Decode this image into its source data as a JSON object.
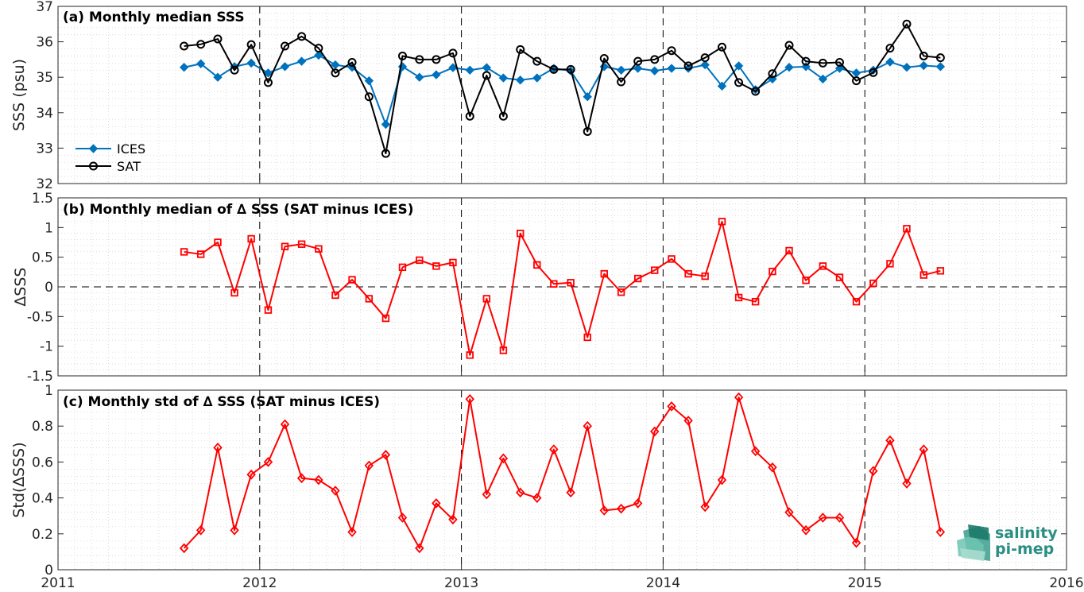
{
  "colors": {
    "ices": "#0072BD",
    "sat": "#000000",
    "delta": "#FF0000",
    "logo": "#2a8f83"
  },
  "logo": {
    "line1": "salinity",
    "line2": "pi-mep"
  },
  "x_axis": {
    "xlim": [
      2011,
      2016
    ],
    "tick_labels": [
      "2011",
      "2012",
      "2013",
      "2014",
      "2015",
      "2016"
    ]
  },
  "chart_data": [
    {
      "type": "line",
      "title": "(a) Monthly median SSS",
      "xlabel": "",
      "ylabel": "SSS (psu)",
      "ylim": [
        32,
        37
      ],
      "y_ticks": [
        "32",
        "33",
        "34",
        "35",
        "36",
        "37"
      ],
      "grid": "on",
      "legend_position": "bottom-left",
      "x": [
        2011.625,
        2011.708,
        2011.792,
        2011.875,
        2011.958,
        2012.042,
        2012.125,
        2012.208,
        2012.292,
        2012.375,
        2012.458,
        2012.542,
        2012.625,
        2012.708,
        2012.792,
        2012.875,
        2012.958,
        2013.042,
        2013.125,
        2013.208,
        2013.292,
        2013.375,
        2013.458,
        2013.542,
        2013.625,
        2013.708,
        2013.792,
        2013.875,
        2013.958,
        2014.042,
        2014.125,
        2014.208,
        2014.292,
        2014.375,
        2014.458,
        2014.542,
        2014.625,
        2014.708,
        2014.792,
        2014.875,
        2014.958,
        2015.042,
        2015.125,
        2015.208,
        2015.292,
        2015.375
      ],
      "series": [
        {
          "name": "ICES",
          "marker": "diamond",
          "values": [
            35.28,
            35.38,
            35.0,
            35.3,
            35.4,
            35.12,
            35.3,
            35.45,
            35.62,
            35.35,
            35.28,
            34.9,
            33.67,
            35.3,
            35.0,
            35.07,
            35.27,
            35.2,
            35.27,
            34.98,
            34.92,
            34.98,
            35.25,
            35.18,
            34.45,
            35.3,
            35.2,
            35.25,
            35.18,
            35.25,
            35.25,
            35.35,
            34.75,
            35.32,
            34.65,
            34.95,
            35.28,
            35.3,
            34.95,
            35.25,
            35.12,
            35.2,
            35.43,
            35.28,
            35.33,
            35.3
          ]
        },
        {
          "name": "SAT",
          "marker": "circle",
          "values": [
            35.88,
            35.93,
            36.08,
            35.2,
            35.92,
            34.85,
            35.88,
            36.15,
            35.82,
            35.12,
            35.42,
            34.45,
            32.85,
            35.6,
            35.5,
            35.5,
            35.68,
            33.9,
            35.05,
            33.9,
            35.78,
            35.45,
            35.22,
            35.22,
            33.47,
            35.53,
            34.87,
            35.45,
            35.5,
            35.75,
            35.32,
            35.55,
            35.85,
            34.85,
            34.6,
            35.1,
            35.9,
            35.45,
            35.4,
            35.42,
            34.9,
            35.13,
            35.82,
            36.5,
            35.6,
            35.55
          ]
        }
      ]
    },
    {
      "type": "line",
      "title": "(b) Monthly median of ∆ SSS (SAT minus ICES)",
      "xlabel": "",
      "ylabel": "∆SSS",
      "ylim": [
        -1.5,
        1.5
      ],
      "y_ticks": [
        "-1.5",
        "-1",
        "-0.5",
        "0",
        "0.5",
        "1",
        "1.5"
      ],
      "grid": "on",
      "reference_line_y": 0,
      "x": [
        2011.625,
        2011.708,
        2011.792,
        2011.875,
        2011.958,
        2012.042,
        2012.125,
        2012.208,
        2012.292,
        2012.375,
        2012.458,
        2012.542,
        2012.625,
        2012.708,
        2012.792,
        2012.875,
        2012.958,
        2013.042,
        2013.125,
        2013.208,
        2013.292,
        2013.375,
        2013.458,
        2013.542,
        2013.625,
        2013.708,
        2013.792,
        2013.875,
        2013.958,
        2014.042,
        2014.125,
        2014.208,
        2014.292,
        2014.375,
        2014.458,
        2014.542,
        2014.625,
        2014.708,
        2014.792,
        2014.875,
        2014.958,
        2015.042,
        2015.125,
        2015.208,
        2015.292,
        2015.375
      ],
      "series": [
        {
          "marker": "square",
          "values": [
            0.59,
            0.55,
            0.75,
            -0.1,
            0.81,
            -0.39,
            0.68,
            0.72,
            0.64,
            -0.14,
            0.12,
            -0.2,
            -0.53,
            0.33,
            0.45,
            0.35,
            0.41,
            -1.15,
            -0.2,
            -1.07,
            0.9,
            0.37,
            0.05,
            0.07,
            -0.85,
            0.22,
            -0.09,
            0.14,
            0.28,
            0.47,
            0.22,
            0.18,
            1.1,
            -0.18,
            -0.25,
            0.26,
            0.61,
            0.11,
            0.35,
            0.16,
            -0.25,
            0.06,
            0.39,
            0.98,
            0.2,
            0.27
          ]
        }
      ]
    },
    {
      "type": "line",
      "title": "(c) Monthly std of ∆ SSS (SAT minus ICES)",
      "xlabel": "",
      "ylabel": "Std(∆SSS)",
      "ylim": [
        0,
        1
      ],
      "y_ticks": [
        "0",
        "0.2",
        "0.4",
        "0.6",
        "0.8",
        "1"
      ],
      "grid": "on",
      "x": [
        2011.625,
        2011.708,
        2011.792,
        2011.875,
        2011.958,
        2012.042,
        2012.125,
        2012.208,
        2012.292,
        2012.375,
        2012.458,
        2012.542,
        2012.625,
        2012.708,
        2012.792,
        2012.875,
        2012.958,
        2013.042,
        2013.125,
        2013.208,
        2013.292,
        2013.375,
        2013.458,
        2013.542,
        2013.625,
        2013.708,
        2013.792,
        2013.875,
        2013.958,
        2014.042,
        2014.125,
        2014.208,
        2014.292,
        2014.375,
        2014.458,
        2014.542,
        2014.625,
        2014.708,
        2014.792,
        2014.875,
        2014.958,
        2015.042,
        2015.125,
        2015.208,
        2015.292,
        2015.375
      ],
      "series": [
        {
          "marker": "diamond",
          "values": [
            0.12,
            0.22,
            0.68,
            0.22,
            0.53,
            0.6,
            0.81,
            0.51,
            0.5,
            0.44,
            0.21,
            0.58,
            0.64,
            0.29,
            0.12,
            0.37,
            0.28,
            0.95,
            0.42,
            0.62,
            0.43,
            0.4,
            0.67,
            0.43,
            0.8,
            0.33,
            0.34,
            0.37,
            0.77,
            0.91,
            0.83,
            0.35,
            0.5,
            0.96,
            0.66,
            0.57,
            0.32,
            0.22,
            0.29,
            0.29,
            0.15,
            0.55,
            0.72,
            0.48,
            0.67,
            0.21
          ]
        }
      ]
    }
  ]
}
